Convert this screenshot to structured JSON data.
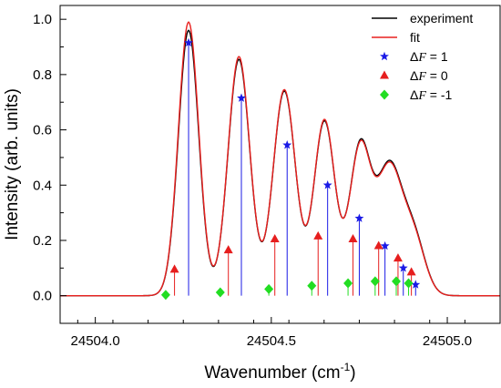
{
  "chart_data": {
    "type": "line",
    "xlabel_base": "Wavenumber (cm",
    "xlabel_sup": "-1",
    "xlabel_close": ")",
    "ylabel": "Intensity (arb. units)",
    "xlim": [
      24503.9,
      24505.15
    ],
    "ylim": [
      -0.1,
      1.05
    ],
    "x_ticks": [
      24504.0,
      24504.5,
      24505.0
    ],
    "x_tick_labels": [
      "24504.0",
      "24504.5",
      "24505.0"
    ],
    "y_ticks": [
      0.0,
      0.2,
      0.4,
      0.6,
      0.8,
      1.0
    ],
    "y_tick_labels": [
      "0.0",
      "0.2",
      "0.4",
      "0.6",
      "0.8",
      "1.0"
    ],
    "legend_position": "top-right",
    "series": [
      {
        "name": "experiment",
        "style": "line",
        "color": "#000000",
        "peaks": [
          {
            "x": 24504.265,
            "height": 0.96,
            "width": 0.029
          },
          {
            "x": 24504.408,
            "height": 0.855,
            "width": 0.031
          },
          {
            "x": 24504.537,
            "height": 0.74,
            "width": 0.032
          },
          {
            "x": 24504.651,
            "height": 0.63,
            "width": 0.03
          },
          {
            "x": 24504.752,
            "height": 0.53,
            "width": 0.03
          },
          {
            "x": 24504.835,
            "height": 0.46,
            "width": 0.036
          },
          {
            "x": 24504.905,
            "height": 0.2,
            "width": 0.032
          }
        ]
      },
      {
        "name": "fit",
        "style": "line",
        "color": "#e8201e",
        "peaks": [
          {
            "x": 24504.265,
            "height": 0.99,
            "width": 0.029
          },
          {
            "x": 24504.408,
            "height": 0.865,
            "width": 0.031
          },
          {
            "x": 24504.537,
            "height": 0.745,
            "width": 0.032
          },
          {
            "x": 24504.651,
            "height": 0.635,
            "width": 0.03
          },
          {
            "x": 24504.752,
            "height": 0.525,
            "width": 0.03
          },
          {
            "x": 24504.835,
            "height": 0.455,
            "width": 0.036
          },
          {
            "x": 24504.905,
            "height": 0.195,
            "width": 0.032
          }
        ]
      },
      {
        "name": "ΔF = 1",
        "label_prefix": "Δ",
        "label_var": "F",
        "label_suffix": " = 1",
        "style": "sticks",
        "marker": "star",
        "color": "#1a1ae6",
        "x": [
          24504.265,
          24504.415,
          24504.545,
          24504.66,
          24504.75,
          24504.823,
          24504.875,
          24504.91
        ],
        "y": [
          0.915,
          0.715,
          0.545,
          0.4,
          0.28,
          0.18,
          0.1,
          0.04
        ]
      },
      {
        "name": "ΔF = 0",
        "label_prefix": "Δ",
        "label_var": "F",
        "label_suffix": " = 0",
        "style": "sticks",
        "marker": "triangle",
        "color": "#e61e1e",
        "x": [
          24504.225,
          24504.378,
          24504.51,
          24504.633,
          24504.732,
          24504.805,
          24504.86,
          24504.898
        ],
        "y": [
          0.095,
          0.165,
          0.205,
          0.215,
          0.205,
          0.18,
          0.135,
          0.085
        ]
      },
      {
        "name": "ΔF = -1",
        "label_prefix": "Δ",
        "label_var": "F",
        "label_suffix": " = -1",
        "style": "sticks",
        "marker": "diamond",
        "color": "#22dd22",
        "x": [
          24504.2,
          24504.355,
          24504.493,
          24504.615,
          24504.718,
          24504.795,
          24504.855,
          24504.89
        ],
        "y": [
          0.003,
          0.012,
          0.024,
          0.036,
          0.045,
          0.052,
          0.052,
          0.045
        ]
      }
    ]
  }
}
